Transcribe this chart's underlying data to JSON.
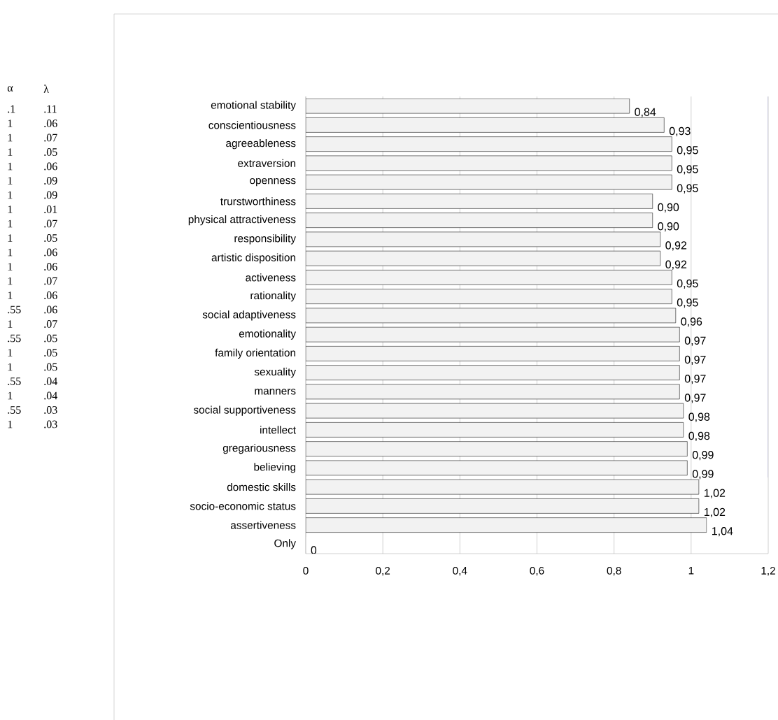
{
  "chart_data": {
    "type": "bar",
    "orientation": "horizontal",
    "categories": [
      "emotional stability",
      "conscientiousness",
      "agreeableness",
      "extraversion",
      "openness",
      "trurstworthiness",
      "physical attractiveness",
      "responsibility",
      "artistic disposition",
      "activeness",
      "rationality",
      "social adaptiveness",
      "emotionality",
      "family orientation",
      "sexuality",
      "manners",
      "social supportiveness",
      "intellect",
      "gregariousness",
      "believing",
      "domestic skills",
      "socio-economic status",
      "assertiveness",
      "Only"
    ],
    "values": [
      0.84,
      0.93,
      0.95,
      0.95,
      0.95,
      0.9,
      0.9,
      0.92,
      0.92,
      0.95,
      0.95,
      0.96,
      0.97,
      0.97,
      0.97,
      0.97,
      0.98,
      0.98,
      0.99,
      0.99,
      1.02,
      1.02,
      1.04,
      0
    ],
    "value_labels": [
      "0,84",
      "0,93",
      "0,95",
      "0,95",
      "0,95",
      "0,90",
      "0,90",
      "0,92",
      "0,92",
      "0,95",
      "0,95",
      "0,96",
      "0,97",
      "0,97",
      "0,97",
      "0,97",
      "0,98",
      "0,98",
      "0,99",
      "0,99",
      "1,02",
      "1,02",
      "1,04",
      "0"
    ],
    "color": "#f2f2f2",
    "xlim": [
      0,
      1.2
    ],
    "xticks": [
      0,
      {
        "value": 0.2,
        "label": "0,2"
      },
      {
        "value": 0.4,
        "label": "0,4"
      },
      {
        "value": 0.6,
        "label": "0,6"
      },
      {
        "value": 0.8,
        "label": "0,8"
      },
      1,
      {
        "value": 1.2,
        "label": "1,2"
      }
    ],
    "grid": "x",
    "annotations": [
      "α",
      "λ",
      ".1",
      ".11",
      "1",
      ".06",
      "1",
      ".07",
      "1",
      ".05",
      "1",
      ".06",
      "1",
      ".09",
      "1",
      ".09",
      "1",
      ".01",
      "1",
      ".07",
      "1",
      ".05",
      "1",
      ".06",
      "1",
      ".06",
      "1",
      ".07",
      "1",
      ".06",
      ".55",
      ".06",
      "1",
      ".07",
      ".55",
      ".05",
      "1",
      ".05",
      "1",
      ".05",
      ".55",
      ".04",
      "1",
      ".04",
      ".55",
      ".03",
      "1",
      ".03"
    ]
  }
}
